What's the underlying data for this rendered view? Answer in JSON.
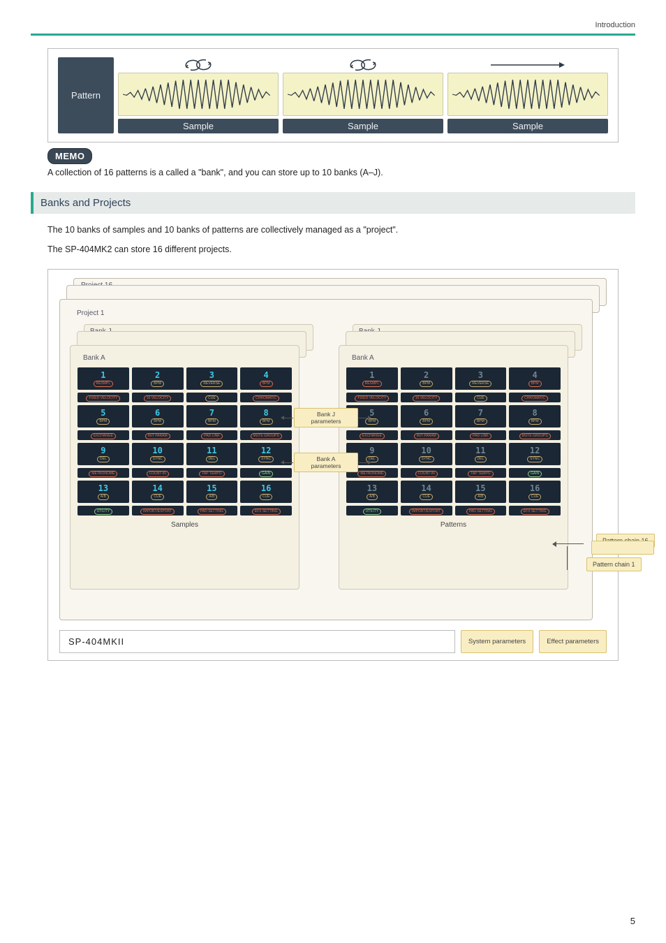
{
  "header": {
    "section_label": "Introduction"
  },
  "pattern_diagram": {
    "pattern_label": "Pattern",
    "samples": [
      {
        "label": "Sample",
        "loop": true
      },
      {
        "label": "Sample",
        "loop": true
      },
      {
        "label": "Sample",
        "loop": false
      }
    ],
    "colors": {
      "panel": "#3d4c5b",
      "wave_bg": "#f4f2c7"
    }
  },
  "memo": {
    "badge": "MEMO",
    "text": "A collection of 16 patterns is a called a \"bank\", and you can store up to 10 banks (A–J)."
  },
  "banks_section": {
    "heading": "Banks and Projects",
    "p1": "The 10 banks of samples and 10 banks of patterns are collectively managed as a \"project\".",
    "p2": "The SP-404MK2 can store 16 different projects."
  },
  "project_diagram": {
    "project_back_label": "Project 16",
    "project_front_label": "Project 1",
    "left_bank": {
      "back_label": "Bank J",
      "front_label": "Bank A",
      "caption": "Samples"
    },
    "right_bank": {
      "back_label": "Bank J",
      "front_label": "Bank A",
      "caption": "Patterns"
    },
    "pad_rows": [
      [
        {
          "num": "1",
          "pill": "RESMPL",
          "pill_c": "red"
        },
        {
          "num": "2",
          "pill": "BPM",
          "pill_c": ""
        },
        {
          "num": "3",
          "pill": "REVERSE",
          "pill_c": ""
        },
        {
          "num": "4",
          "pill": "BPM",
          "pill_c": "red"
        }
      ],
      [
        {
          "num": "",
          "pill": "FIXED VELOCITY",
          "pill_c": "red"
        },
        {
          "num": "",
          "pill": "16 VELOCITY",
          "pill_c": "red"
        },
        {
          "num": "",
          "pill": "CUE",
          "pill_c": ""
        },
        {
          "num": "",
          "pill": "CHROMATIC",
          "pill_c": "red"
        }
      ],
      [
        {
          "num": "5",
          "pill": "BPM",
          "pill_c": ""
        },
        {
          "num": "6",
          "pill": "BPM",
          "pill_c": ""
        },
        {
          "num": "7",
          "pill": "BPM",
          "pill_c": ""
        },
        {
          "num": "8",
          "pill": "BPM",
          "pill_c": ""
        }
      ],
      [
        {
          "num": "",
          "pill": "EXCHANGE",
          "pill_c": "red"
        },
        {
          "num": "",
          "pill": "INIT PARAM",
          "pill_c": "red"
        },
        {
          "num": "",
          "pill": "PAD LINK",
          "pill_c": "red"
        },
        {
          "num": "",
          "pill": "MUTE GROUPS",
          "pill_c": "red"
        }
      ],
      [
        {
          "num": "9",
          "pill": "DEL",
          "pill_c": ""
        },
        {
          "num": "10",
          "pill": "SYNC",
          "pill_c": ""
        },
        {
          "num": "11",
          "pill": "DEL",
          "pill_c": ""
        },
        {
          "num": "12",
          "pill": "SYNC",
          "pill_c": ""
        }
      ],
      [
        {
          "num": "",
          "pill": "METRONOME",
          "pill_c": "red"
        },
        {
          "num": "",
          "pill": "COUNT-IN",
          "pill_c": "red"
        },
        {
          "num": "",
          "pill": "TAP TEMPO",
          "pill_c": "red"
        },
        {
          "num": "",
          "pill": "GAIN",
          "pill_c": "grn"
        }
      ],
      [
        {
          "num": "13",
          "pill": "A/B",
          "pill_c": ""
        },
        {
          "num": "14",
          "pill": "CUE",
          "pill_c": ""
        },
        {
          "num": "15",
          "pill": "A/B",
          "pill_c": ""
        },
        {
          "num": "16",
          "pill": "CUE",
          "pill_c": ""
        }
      ],
      [
        {
          "num": "",
          "pill": "UTILITY",
          "pill_c": "grn"
        },
        {
          "num": "",
          "pill": "IMPORT/EXPORT",
          "pill_c": "red"
        },
        {
          "num": "",
          "pill": "PAD SETTING",
          "pill_c": "red"
        },
        {
          "num": "",
          "pill": "EFX SETTING",
          "pill_c": "red"
        }
      ]
    ],
    "param_labels": {
      "bank_j": "Bank J\nparameters",
      "bank_a": "Bank A\nparameters"
    },
    "pattern_chain": {
      "back_label": "Pattern chain 16",
      "front_label": "Pattern chain 1"
    },
    "footer": {
      "title": "SP-404MKII",
      "system_params": "System parameters",
      "effect_params": "Effect parameters"
    },
    "colors": {
      "accent": "#2aa890",
      "page_bg": "#ffffff",
      "project_bg": "#f8f6ef",
      "bank_bg": "#f4f0e2",
      "pad_bg": "#1b2734",
      "pad_num_color": "#3ec8e6",
      "chip_bg": "#f9eec3",
      "chip_border": "#d7c26f"
    }
  },
  "page_number": "5"
}
